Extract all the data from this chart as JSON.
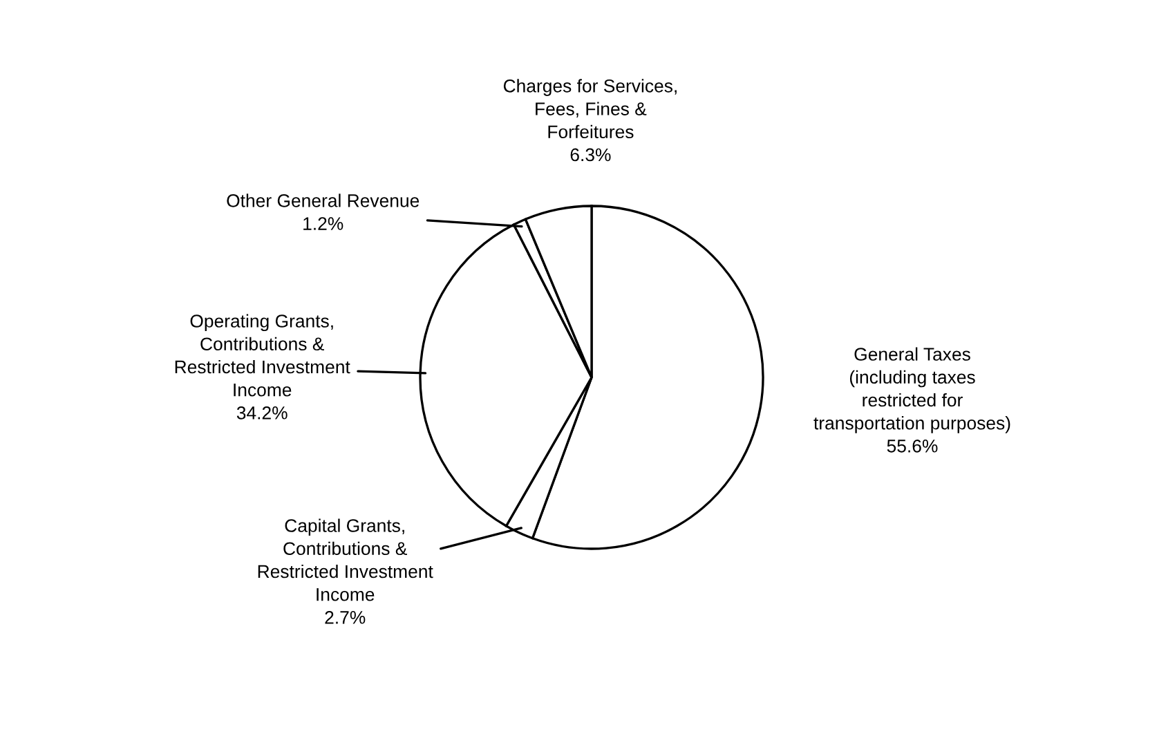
{
  "chart_data": {
    "type": "pie",
    "categories": [
      "General Taxes\n(including taxes\nrestricted for\ntransportation purposes)",
      "Capital Grants,\nContributions &\nRestricted Investment\nIncome",
      "Operating Grants,\nContributions &\nRestricted Investment\nIncome",
      "Other General Revenue",
      "Charges for Services,\nFees, Fines &\nForfeitures"
    ],
    "values": [
      55.6,
      2.7,
      34.2,
      1.2,
      6.3
    ],
    "value_labels": [
      "55.6%",
      "2.7%",
      "34.2%",
      "1.2%",
      "6.3%"
    ],
    "colors": [
      "#ffffff",
      "#ffffff",
      "#ffffff",
      "#ffffff",
      "#ffffff"
    ]
  }
}
